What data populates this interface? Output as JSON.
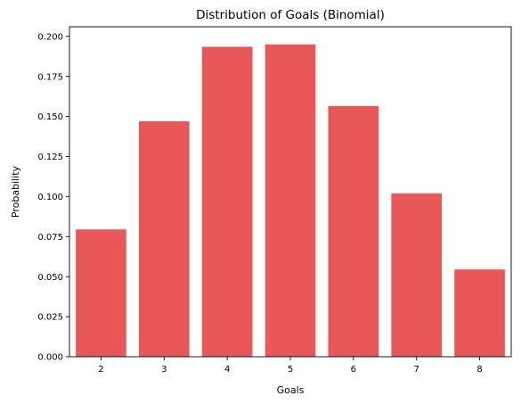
{
  "chart_data": {
    "type": "bar",
    "title": "Distribution of Goals (Binomial)",
    "xlabel": "Goals",
    "ylabel": "Probability",
    "categories": [
      "2",
      "3",
      "4",
      "5",
      "6",
      "7",
      "8"
    ],
    "values": [
      0.0795,
      0.147,
      0.1935,
      0.195,
      0.1565,
      0.102,
      0.0545
    ],
    "ylim": [
      0,
      0.206
    ],
    "yticks": [
      "0.000",
      "0.025",
      "0.050",
      "0.075",
      "0.100",
      "0.125",
      "0.150",
      "0.175",
      "0.200"
    ],
    "bar_color": "#e85858",
    "grid": false,
    "legend": "none"
  }
}
